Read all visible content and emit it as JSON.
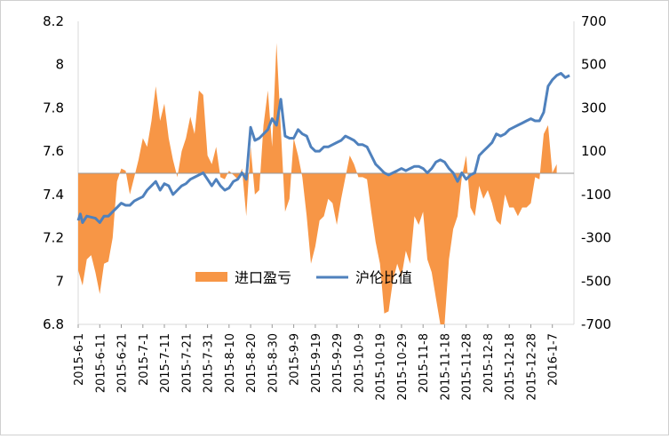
{
  "chart_data": {
    "type": "bar+line",
    "title": "",
    "legend_position": "center",
    "colors": {
      "bar": "#F79646",
      "line": "#4F81BD"
    },
    "y_left": {
      "min": 6.8,
      "max": 8.2,
      "ticks": [
        "6.8",
        "7",
        "7.2",
        "7.4",
        "7.6",
        "7.8",
        "8",
        "8.2"
      ]
    },
    "y_right": {
      "min": -700,
      "max": 700,
      "ticks": [
        "-700",
        "-500",
        "-300",
        "-100",
        "100",
        "300",
        "500",
        "700"
      ]
    },
    "x_ticks": [
      "2015-6-1",
      "2015-6-11",
      "2015-6-21",
      "2015-7-1",
      "2015-7-11",
      "2015-7-21",
      "2015-7-31",
      "2015-8-10",
      "2015-8-20",
      "2015-8-30",
      "2015-9-9",
      "2015-9-19",
      "2015-9-29",
      "2015-10-9",
      "2015-10-19",
      "2015-10-29",
      "2015-11-8",
      "2015-11-18",
      "2015-11-28",
      "2015-12-8",
      "2015-12-18",
      "2015-12-28",
      "2016-1-7"
    ],
    "grid": false,
    "series": [
      {
        "name": "进口盈亏",
        "axis": "right",
        "kind": "area",
        "points": [
          [
            0,
            -450
          ],
          [
            2,
            -520
          ],
          [
            4,
            -400
          ],
          [
            6,
            -380
          ],
          [
            8,
            -460
          ],
          [
            10,
            -560
          ],
          [
            12,
            -420
          ],
          [
            14,
            -410
          ],
          [
            16,
            -300
          ],
          [
            18,
            -40
          ],
          [
            20,
            20
          ],
          [
            22,
            10
          ],
          [
            24,
            -100
          ],
          [
            26,
            -20
          ],
          [
            28,
            60
          ],
          [
            30,
            160
          ],
          [
            32,
            120
          ],
          [
            34,
            240
          ],
          [
            36,
            400
          ],
          [
            38,
            240
          ],
          [
            40,
            320
          ],
          [
            42,
            160
          ],
          [
            44,
            60
          ],
          [
            46,
            -20
          ],
          [
            48,
            100
          ],
          [
            50,
            160
          ],
          [
            52,
            260
          ],
          [
            54,
            180
          ],
          [
            56,
            380
          ],
          [
            58,
            360
          ],
          [
            60,
            80
          ],
          [
            62,
            40
          ],
          [
            64,
            120
          ],
          [
            66,
            -20
          ],
          [
            68,
            -30
          ],
          [
            70,
            10
          ],
          [
            72,
            -10
          ],
          [
            74,
            -30
          ],
          [
            76,
            20
          ],
          [
            78,
            -200
          ],
          [
            80,
            120
          ],
          [
            82,
            -100
          ],
          [
            84,
            -80
          ],
          [
            86,
            220
          ],
          [
            88,
            380
          ],
          [
            90,
            120
          ],
          [
            92,
            600
          ],
          [
            94,
            200
          ],
          [
            96,
            -180
          ],
          [
            98,
            -120
          ],
          [
            100,
            160
          ],
          [
            102,
            80
          ],
          [
            104,
            -20
          ],
          [
            106,
            -200
          ],
          [
            108,
            -420
          ],
          [
            110,
            -340
          ],
          [
            112,
            -220
          ],
          [
            114,
            -200
          ],
          [
            116,
            -120
          ],
          [
            118,
            -140
          ],
          [
            120,
            -240
          ],
          [
            122,
            -120
          ],
          [
            124,
            -20
          ],
          [
            126,
            80
          ],
          [
            128,
            40
          ],
          [
            130,
            -20
          ],
          [
            132,
            -20
          ],
          [
            134,
            -30
          ],
          [
            136,
            -180
          ],
          [
            138,
            -320
          ],
          [
            140,
            -420
          ],
          [
            142,
            -650
          ],
          [
            144,
            -640
          ],
          [
            146,
            -500
          ],
          [
            148,
            -420
          ],
          [
            150,
            -480
          ],
          [
            152,
            -360
          ],
          [
            154,
            -420
          ],
          [
            156,
            -200
          ],
          [
            158,
            -240
          ],
          [
            160,
            -180
          ],
          [
            162,
            -400
          ],
          [
            164,
            -460
          ],
          [
            166,
            -580
          ],
          [
            168,
            -700
          ],
          [
            170,
            -700
          ],
          [
            172,
            -400
          ],
          [
            174,
            -260
          ],
          [
            176,
            -200
          ],
          [
            178,
            -20
          ],
          [
            180,
            80
          ],
          [
            182,
            -160
          ],
          [
            184,
            -200
          ],
          [
            186,
            -60
          ],
          [
            188,
            -120
          ],
          [
            190,
            -80
          ],
          [
            192,
            -140
          ],
          [
            194,
            -220
          ],
          [
            196,
            -240
          ],
          [
            198,
            -100
          ],
          [
            200,
            -160
          ],
          [
            202,
            -160
          ],
          [
            204,
            -200
          ],
          [
            206,
            -160
          ],
          [
            208,
            -160
          ],
          [
            210,
            -140
          ],
          [
            212,
            -20
          ],
          [
            214,
            -30
          ],
          [
            216,
            180
          ],
          [
            218,
            220
          ],
          [
            220,
            0
          ],
          [
            222,
            40
          ]
        ]
      },
      {
        "name": "沪伦比值",
        "axis": "left",
        "kind": "line",
        "points": [
          [
            0,
            7.28
          ],
          [
            1,
            7.31
          ],
          [
            2,
            7.27
          ],
          [
            4,
            7.3
          ],
          [
            8,
            7.29
          ],
          [
            10,
            7.27
          ],
          [
            12,
            7.3
          ],
          [
            14,
            7.3
          ],
          [
            16,
            7.32
          ],
          [
            18,
            7.34
          ],
          [
            20,
            7.36
          ],
          [
            22,
            7.35
          ],
          [
            24,
            7.35
          ],
          [
            26,
            7.37
          ],
          [
            28,
            7.38
          ],
          [
            30,
            7.39
          ],
          [
            32,
            7.42
          ],
          [
            34,
            7.44
          ],
          [
            36,
            7.46
          ],
          [
            38,
            7.42
          ],
          [
            40,
            7.45
          ],
          [
            42,
            7.44
          ],
          [
            44,
            7.4
          ],
          [
            46,
            7.42
          ],
          [
            48,
            7.44
          ],
          [
            50,
            7.45
          ],
          [
            52,
            7.47
          ],
          [
            54,
            7.48
          ],
          [
            56,
            7.49
          ],
          [
            58,
            7.5
          ],
          [
            60,
            7.47
          ],
          [
            62,
            7.44
          ],
          [
            64,
            7.47
          ],
          [
            66,
            7.44
          ],
          [
            68,
            7.42
          ],
          [
            70,
            7.43
          ],
          [
            72,
            7.46
          ],
          [
            74,
            7.47
          ],
          [
            76,
            7.5
          ],
          [
            78,
            7.47
          ],
          [
            80,
            7.71
          ],
          [
            82,
            7.65
          ],
          [
            84,
            7.66
          ],
          [
            86,
            7.68
          ],
          [
            88,
            7.7
          ],
          [
            90,
            7.75
          ],
          [
            92,
            7.72
          ],
          [
            94,
            7.84
          ],
          [
            96,
            7.67
          ],
          [
            98,
            7.66
          ],
          [
            100,
            7.66
          ],
          [
            102,
            7.7
          ],
          [
            104,
            7.68
          ],
          [
            106,
            7.67
          ],
          [
            108,
            7.62
          ],
          [
            110,
            7.6
          ],
          [
            112,
            7.6
          ],
          [
            114,
            7.62
          ],
          [
            116,
            7.62
          ],
          [
            118,
            7.63
          ],
          [
            120,
            7.64
          ],
          [
            122,
            7.65
          ],
          [
            124,
            7.67
          ],
          [
            126,
            7.66
          ],
          [
            128,
            7.65
          ],
          [
            130,
            7.63
          ],
          [
            132,
            7.63
          ],
          [
            134,
            7.62
          ],
          [
            136,
            7.58
          ],
          [
            138,
            7.54
          ],
          [
            140,
            7.52
          ],
          [
            142,
            7.5
          ],
          [
            144,
            7.49
          ],
          [
            146,
            7.5
          ],
          [
            148,
            7.51
          ],
          [
            150,
            7.52
          ],
          [
            152,
            7.51
          ],
          [
            154,
            7.52
          ],
          [
            156,
            7.53
          ],
          [
            158,
            7.53
          ],
          [
            160,
            7.52
          ],
          [
            162,
            7.5
          ],
          [
            164,
            7.52
          ],
          [
            166,
            7.55
          ],
          [
            168,
            7.56
          ],
          [
            170,
            7.55
          ],
          [
            172,
            7.52
          ],
          [
            174,
            7.5
          ],
          [
            176,
            7.46
          ],
          [
            178,
            7.5
          ],
          [
            180,
            7.47
          ],
          [
            182,
            7.49
          ],
          [
            184,
            7.5
          ],
          [
            186,
            7.58
          ],
          [
            188,
            7.6
          ],
          [
            190,
            7.62
          ],
          [
            192,
            7.64
          ],
          [
            194,
            7.68
          ],
          [
            196,
            7.67
          ],
          [
            198,
            7.68
          ],
          [
            200,
            7.7
          ],
          [
            202,
            7.71
          ],
          [
            204,
            7.72
          ],
          [
            206,
            7.73
          ],
          [
            208,
            7.74
          ],
          [
            210,
            7.75
          ],
          [
            212,
            7.74
          ],
          [
            214,
            7.74
          ],
          [
            216,
            7.78
          ],
          [
            218,
            7.9
          ],
          [
            220,
            7.93
          ],
          [
            222,
            7.95
          ],
          [
            224,
            7.96
          ],
          [
            226,
            7.94
          ],
          [
            228,
            7.95
          ]
        ]
      }
    ]
  }
}
